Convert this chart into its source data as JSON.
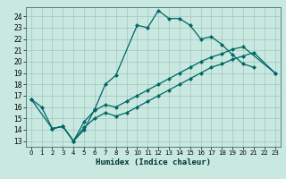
{
  "title": "",
  "xlabel": "Humidex (Indice chaleur)",
  "bg_color": "#c8e8e0",
  "line_color": "#006666",
  "grid_color": "#a0c8c0",
  "xlim": [
    -0.5,
    23.5
  ],
  "ylim": [
    12.5,
    24.8
  ],
  "yticks": [
    13,
    14,
    15,
    16,
    17,
    18,
    19,
    20,
    21,
    22,
    23,
    24
  ],
  "xticks": [
    0,
    1,
    2,
    3,
    4,
    5,
    6,
    7,
    8,
    9,
    10,
    11,
    12,
    13,
    14,
    15,
    16,
    17,
    18,
    19,
    20,
    21,
    22,
    23
  ],
  "line1_x": [
    0,
    1,
    2,
    3,
    4,
    5,
    6,
    7,
    8,
    10,
    11,
    12,
    13,
    14,
    15,
    16,
    17,
    18,
    19,
    20,
    21
  ],
  "line1_y": [
    16.7,
    16.0,
    14.1,
    14.3,
    13.0,
    14.0,
    15.8,
    18.0,
    18.8,
    23.2,
    23.0,
    24.5,
    23.8,
    23.8,
    23.2,
    22.0,
    22.2,
    21.5,
    20.6,
    19.8,
    19.5
  ],
  "line2_x": [
    2,
    3,
    4,
    5,
    6,
    7,
    8,
    9,
    10,
    11,
    12,
    13,
    14,
    15,
    16,
    17,
    18,
    19,
    20,
    21,
    23
  ],
  "line2_y": [
    14.1,
    14.3,
    13.0,
    14.2,
    15.0,
    15.5,
    15.2,
    15.5,
    16.0,
    16.5,
    17.0,
    17.5,
    18.0,
    18.5,
    19.0,
    19.5,
    19.8,
    20.2,
    20.5,
    20.8,
    19.0
  ],
  "line3_x": [
    0,
    2,
    3,
    4,
    5,
    6,
    7,
    8,
    9,
    10,
    11,
    12,
    13,
    14,
    15,
    16,
    17,
    18,
    19,
    20,
    23
  ],
  "line3_y": [
    16.7,
    14.1,
    14.3,
    13.0,
    14.7,
    15.7,
    16.2,
    16.0,
    16.5,
    17.0,
    17.5,
    18.0,
    18.5,
    19.0,
    19.5,
    20.0,
    20.4,
    20.7,
    21.1,
    21.3,
    19.0
  ],
  "xlabel_fontsize": 6.5,
  "tick_fontsize": 5.5
}
